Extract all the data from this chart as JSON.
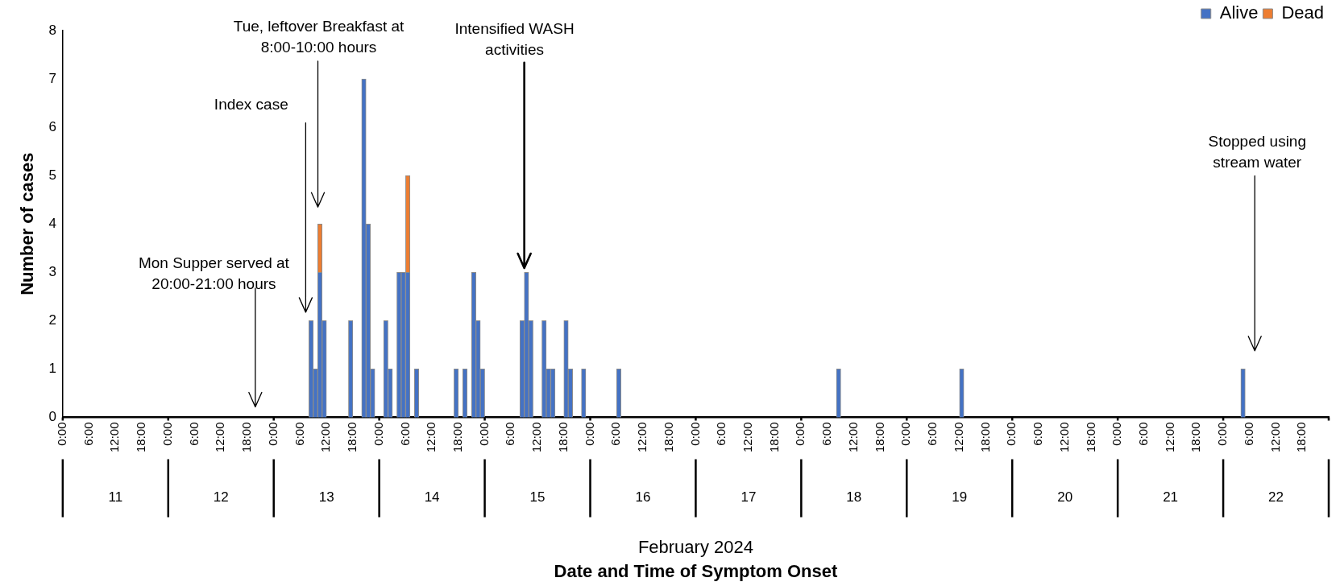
{
  "chart_data": {
    "type": "bar",
    "ylabel": "Number of cases",
    "x": [
      "2024-02-13T08:00",
      "2024-02-13T09:00",
      "2024-02-13T10:00",
      "2024-02-13T11:00",
      "2024-02-13T17:00",
      "2024-02-13T20:00",
      "2024-02-13T21:00",
      "2024-02-13T22:00",
      "2024-02-14T01:00",
      "2024-02-14T02:00",
      "2024-02-14T04:00",
      "2024-02-14T05:00",
      "2024-02-14T06:00",
      "2024-02-14T08:00",
      "2024-02-14T17:00",
      "2024-02-14T19:00",
      "2024-02-14T21:00",
      "2024-02-14T22:00",
      "2024-02-14T23:00",
      "2024-02-15T08:00",
      "2024-02-15T09:00",
      "2024-02-15T10:00",
      "2024-02-15T13:00",
      "2024-02-15T14:00",
      "2024-02-15T15:00",
      "2024-02-15T18:00",
      "2024-02-15T19:00",
      "2024-02-15T22:00",
      "2024-02-16T06:00",
      "2024-02-18T08:00",
      "2024-02-19T12:00",
      "2024-02-22T04:00"
    ],
    "series": [
      {
        "name": "Alive",
        "color": "#4472c4",
        "values": [
          2,
          1,
          3,
          2,
          2,
          7,
          4,
          1,
          2,
          1,
          3,
          3,
          3,
          1,
          1,
          1,
          3,
          2,
          1,
          2,
          3,
          2,
          2,
          1,
          1,
          2,
          1,
          1,
          1,
          1,
          1,
          1
        ]
      },
      {
        "name": "Dead",
        "color": "#ed7d31",
        "values": [
          0,
          0,
          1,
          0,
          0,
          0,
          0,
          0,
          0,
          0,
          0,
          0,
          2,
          0,
          0,
          0,
          0,
          0,
          0,
          0,
          0,
          0,
          0,
          0,
          0,
          0,
          0,
          0,
          0,
          0,
          0,
          0
        ]
      }
    ],
    "stacked": true,
    "xlim": [
      "2024-02-11T00:00",
      "2024-02-23T00:00"
    ],
    "xticks": [
      {
        "value": "2024-02-11T00:00",
        "label": "0:00"
      },
      {
        "value": "2024-02-11T06:00",
        "label": "6:00"
      },
      {
        "value": "2024-02-11T12:00",
        "label": "12:00"
      },
      {
        "value": "2024-02-11T18:00",
        "label": "18:00"
      },
      {
        "value": "2024-02-12T00:00",
        "label": "0:00"
      },
      {
        "value": "2024-02-12T06:00",
        "label": "6:00"
      },
      {
        "value": "2024-02-12T12:00",
        "label": "12:00"
      },
      {
        "value": "2024-02-12T18:00",
        "label": "18:00"
      },
      {
        "value": "2024-02-13T00:00",
        "label": "0:00"
      },
      {
        "value": "2024-02-13T06:00",
        "label": "6:00"
      },
      {
        "value": "2024-02-13T12:00",
        "label": "12:00"
      },
      {
        "value": "2024-02-13T18:00",
        "label": "18:00"
      },
      {
        "value": "2024-02-14T00:00",
        "label": "0:00"
      },
      {
        "value": "2024-02-14T06:00",
        "label": "6:00"
      },
      {
        "value": "2024-02-14T12:00",
        "label": "12:00"
      },
      {
        "value": "2024-02-14T18:00",
        "label": "18:00"
      },
      {
        "value": "2024-02-15T00:00",
        "label": "0:00"
      },
      {
        "value": "2024-02-15T06:00",
        "label": "6:00"
      },
      {
        "value": "2024-02-15T12:00",
        "label": "12:00"
      },
      {
        "value": "2024-02-15T18:00",
        "label": "18:00"
      },
      {
        "value": "2024-02-16T00:00",
        "label": "0:00"
      },
      {
        "value": "2024-02-16T06:00",
        "label": "6:00"
      },
      {
        "value": "2024-02-16T12:00",
        "label": "12:00"
      },
      {
        "value": "2024-02-16T18:00",
        "label": "18:00"
      },
      {
        "value": "2024-02-17T00:00",
        "label": "0:00"
      },
      {
        "value": "2024-02-17T06:00",
        "label": "6:00"
      },
      {
        "value": "2024-02-17T12:00",
        "label": "12:00"
      },
      {
        "value": "2024-02-17T18:00",
        "label": "18:00"
      },
      {
        "value": "2024-02-18T00:00",
        "label": "0:00"
      },
      {
        "value": "2024-02-18T06:00",
        "label": "6:00"
      },
      {
        "value": "2024-02-18T12:00",
        "label": "12:00"
      },
      {
        "value": "2024-02-18T18:00",
        "label": "18:00"
      },
      {
        "value": "2024-02-19T00:00",
        "label": "0:00"
      },
      {
        "value": "2024-02-19T06:00",
        "label": "6:00"
      },
      {
        "value": "2024-02-19T12:00",
        "label": "12:00"
      },
      {
        "value": "2024-02-19T18:00",
        "label": "18:00"
      },
      {
        "value": "2024-02-20T00:00",
        "label": "0:00"
      },
      {
        "value": "2024-02-20T06:00",
        "label": "6:00"
      },
      {
        "value": "2024-02-20T12:00",
        "label": "12:00"
      },
      {
        "value": "2024-02-20T18:00",
        "label": "18:00"
      },
      {
        "value": "2024-02-21T00:00",
        "label": "0:00"
      },
      {
        "value": "2024-02-21T06:00",
        "label": "6:00"
      },
      {
        "value": "2024-02-21T12:00",
        "label": "12:00"
      },
      {
        "value": "2024-02-21T18:00",
        "label": "18:00"
      },
      {
        "value": "2024-02-22T00:00",
        "label": "0:00"
      },
      {
        "value": "2024-02-22T06:00",
        "label": "6:00"
      },
      {
        "value": "2024-02-22T12:00",
        "label": "12:00"
      },
      {
        "value": "2024-02-22T18:00",
        "label": "18:00"
      }
    ],
    "ylim": [
      0,
      8
    ],
    "yticks": [
      0,
      1,
      2,
      3,
      4,
      5,
      6,
      7,
      8
    ],
    "grid": false,
    "legend": "top right",
    "annotations": [
      "Mon Supper served at 20:00-21:00 hours",
      "Index case",
      "Tue, leftover Breakfast at 8:00-10:00 hours",
      "Intensified WASH activities",
      "Stopped using stream water",
      "11",
      "12",
      "13",
      "14",
      "15",
      "16",
      "17",
      "18",
      "19",
      "20",
      "21",
      "22",
      "February 2024",
      "Date and Time of Symptom Onset"
    ]
  }
}
